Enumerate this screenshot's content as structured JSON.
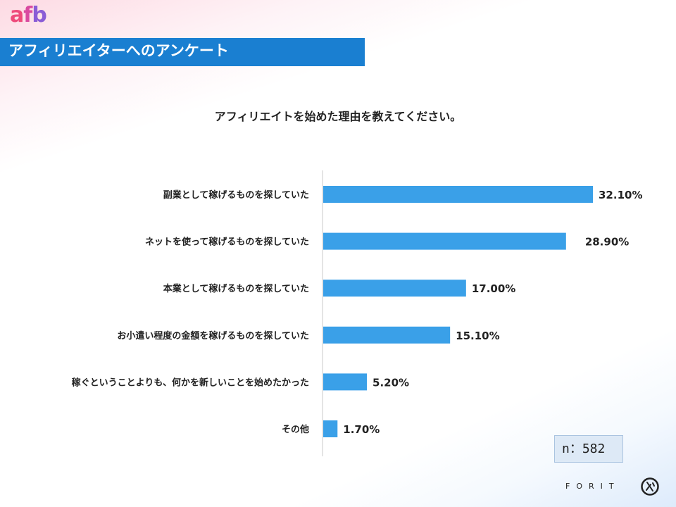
{
  "logo": {
    "part1": "a",
    "part2": "f",
    "part3": "b"
  },
  "header": {
    "title": "アフィリエイターへのアンケート"
  },
  "question": "アフィリエイトを始めた理由を教えてください。",
  "chart_data": {
    "type": "bar",
    "orientation": "horizontal",
    "categories": [
      "副業として稼げるものを探していた",
      "ネットを使って稼げるものを探していた",
      "本業として稼げるものを探していた",
      "お小遣い程度の金額を稼げるものを探していた",
      "稼ぐということよりも、何かを新しいことを始めたかった",
      "その他"
    ],
    "values": [
      32.1,
      28.9,
      17.0,
      15.1,
      5.2,
      1.7
    ],
    "value_labels": [
      "32.10%",
      "28.90%",
      "17.00%",
      "15.10%",
      "5.20%",
      "1.70%"
    ],
    "unit": "%",
    "xlim": [
      0,
      40
    ],
    "grid": false,
    "legend": "none",
    "bar_color": "#3aa0e8"
  },
  "sample": {
    "label": "n：582"
  },
  "footer": {
    "brand": "FORIT",
    "icon": "forit-logo-icon"
  },
  "colors": {
    "accent": "#1a7fd1",
    "bar": "#3aa0e8",
    "logo_pink": "#ee4b7c",
    "logo_purple": "#8a5cd6"
  }
}
